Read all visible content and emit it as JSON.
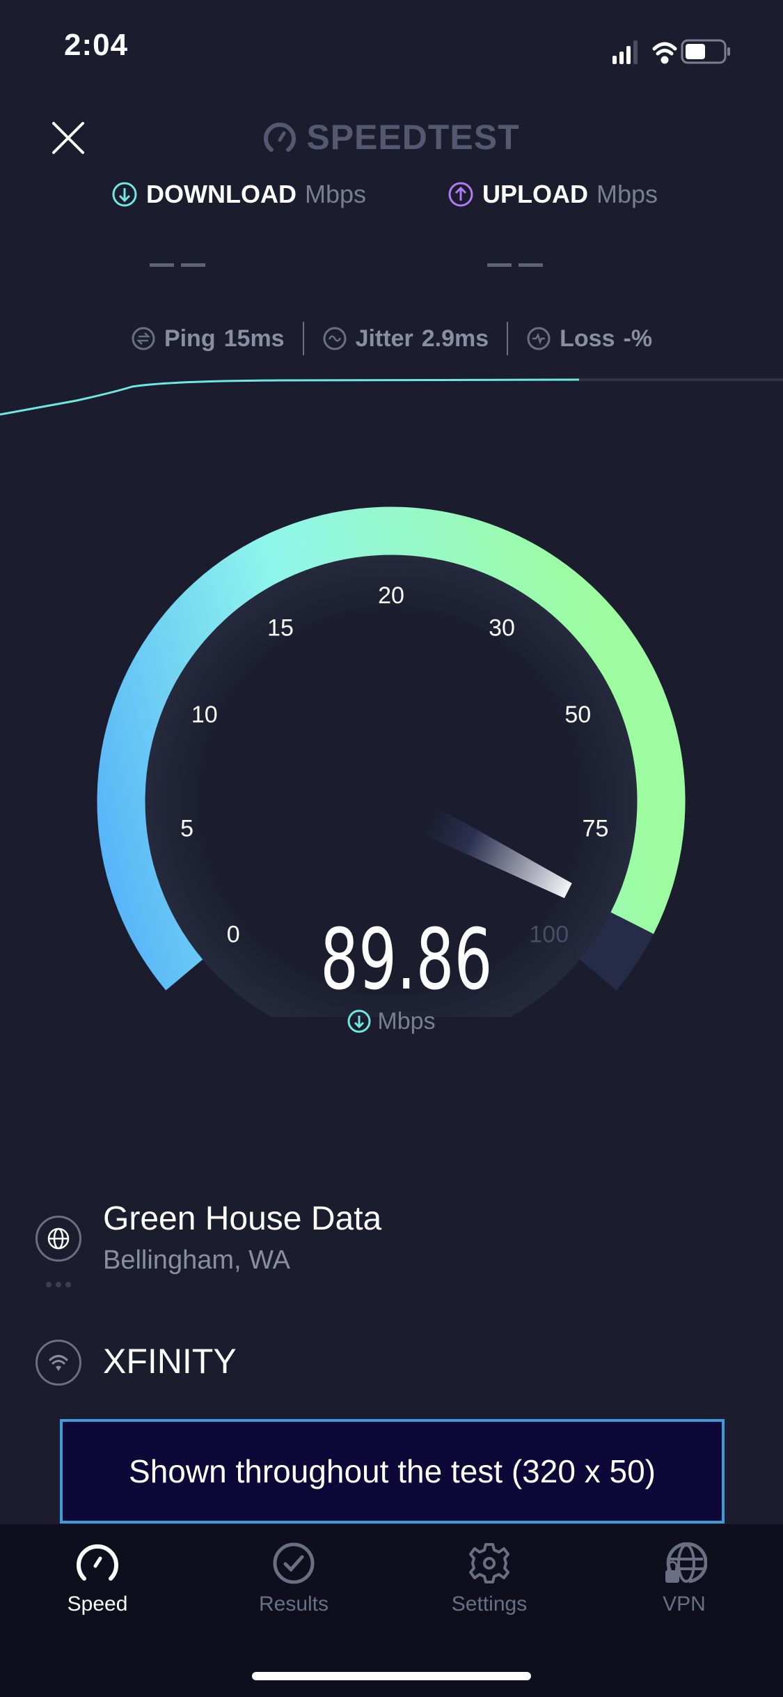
{
  "status_bar": {
    "time": "2:04",
    "signal_icon": "cellular-signal-icon",
    "wifi_icon": "wifi-icon",
    "battery_icon": "battery-icon"
  },
  "header": {
    "close_icon": "close-icon",
    "logo": "SPEEDTEST"
  },
  "download": {
    "label": "DOWNLOAD",
    "unit": "Mbps",
    "value": "— —",
    "color": "#6ee9e2"
  },
  "upload": {
    "label": "UPLOAD",
    "unit": "Mbps",
    "value": "— —",
    "color": "#b07cf5"
  },
  "metrics": {
    "ping": {
      "label": "Ping",
      "value": "15",
      "unit": "ms"
    },
    "jitter": {
      "label": "Jitter",
      "value": "2.9",
      "unit": "ms"
    },
    "loss": {
      "label": "Loss",
      "value": "-",
      "unit": "%"
    }
  },
  "gauge": {
    "ticks": [
      "0",
      "5",
      "10",
      "15",
      "20",
      "30",
      "50",
      "75",
      "100"
    ],
    "value": 89.86,
    "value_text": "89.86",
    "unit": "Mbps",
    "colors": {
      "start": "#56b2f9",
      "mid": "#90f6ec",
      "end": "#9dfc9f",
      "track": "#262b48"
    }
  },
  "server": {
    "name": "Green House Data",
    "location": "Bellingham, WA"
  },
  "provider": {
    "name": "XFINITY"
  },
  "ad": {
    "text": "Shown throughout the test (320 x 50)"
  },
  "tabs": [
    {
      "label": "Speed",
      "icon": "speedometer-icon",
      "active": true
    },
    {
      "label": "Results",
      "icon": "checkmark-circle-icon",
      "active": false
    },
    {
      "label": "Settings",
      "icon": "gear-icon",
      "active": false
    },
    {
      "label": "VPN",
      "icon": "globe-lock-icon",
      "active": false
    }
  ]
}
